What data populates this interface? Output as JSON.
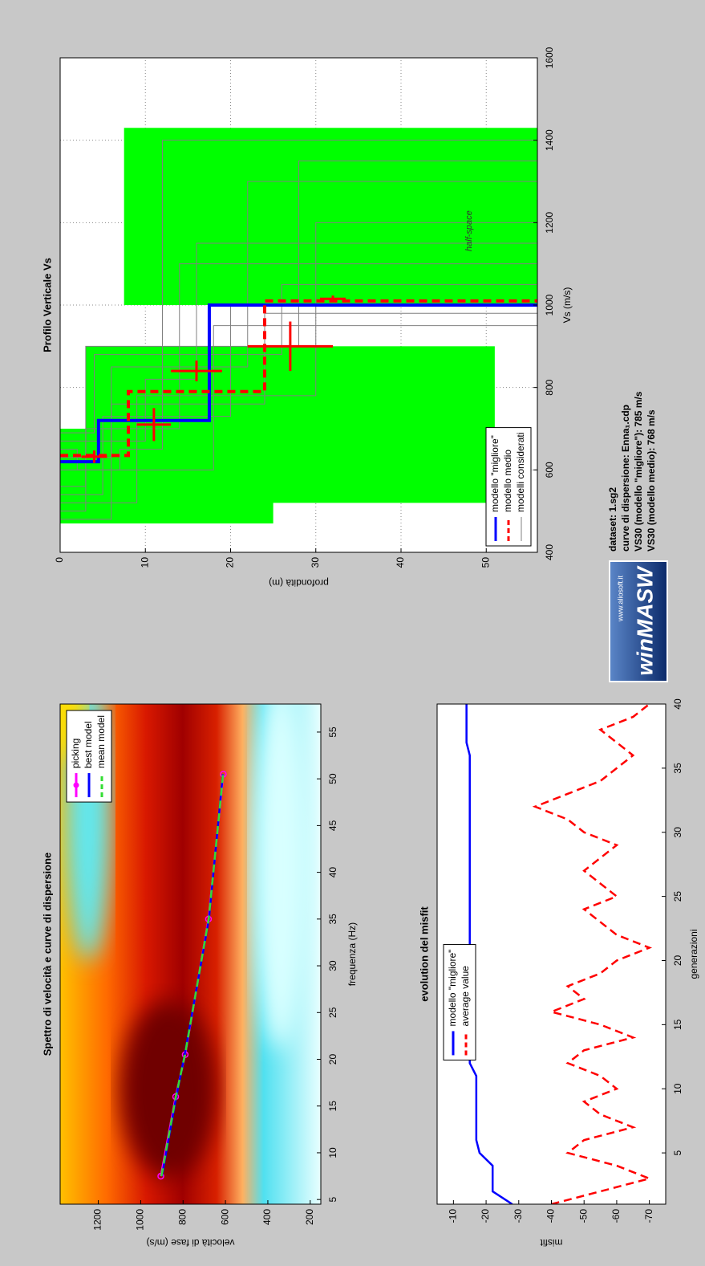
{
  "chart_data": [
    {
      "type": "line",
      "title": "Spettro di velocità e curve di dispersione",
      "xlabel": "frequenza (Hz)",
      "ylabel": "velocità di fase (m/s)",
      "xlim": [
        4.5,
        58
      ],
      "xticks": [
        5,
        10,
        15,
        20,
        25,
        30,
        35,
        40,
        45,
        50,
        55
      ],
      "ylim": [
        150,
        1380
      ],
      "yticks": [
        200,
        400,
        600,
        800,
        1000,
        1200
      ],
      "grid": false,
      "legend": "upper right",
      "series": [
        {
          "name": "picking",
          "color": "#ff00ff",
          "marker": "o",
          "x": [
            7.5,
            16,
            20.5,
            35,
            50.5
          ],
          "values": [
            905,
            835,
            790,
            680,
            610
          ]
        },
        {
          "name": "best model",
          "color": "#0000ff",
          "x": [
            7.5,
            16,
            20.5,
            35,
            50.5
          ],
          "values": [
            900,
            832,
            792,
            678,
            612
          ]
        },
        {
          "name": "mean model",
          "color": "#33dd33",
          "dash": true,
          "x": [
            7.5,
            16,
            20.5,
            35,
            50.5
          ],
          "values": [
            902,
            834,
            791,
            679,
            611
          ]
        }
      ]
    },
    {
      "type": "line",
      "title": "evolution del misfit",
      "xlabel": "generazioni",
      "ylabel": "misfit",
      "xlim": [
        1,
        40
      ],
      "xticks": [
        5,
        10,
        15,
        20,
        25,
        30,
        35,
        40
      ],
      "ylim": [
        -75,
        -5
      ],
      "yticks": [
        -70,
        -60,
        -50,
        -40,
        -30,
        -20,
        -10
      ],
      "grid": false,
      "legend": "upper center",
      "x": [
        1,
        2,
        3,
        4,
        5,
        6,
        7,
        8,
        9,
        10,
        11,
        12,
        13,
        14,
        15,
        16,
        17,
        18,
        19,
        20,
        21,
        22,
        23,
        24,
        25,
        26,
        27,
        28,
        29,
        30,
        31,
        32,
        33,
        34,
        35,
        36,
        37,
        38,
        39,
        40
      ],
      "series": [
        {
          "name": "modello \"migliore\"",
          "color": "#0000ff",
          "values": [
            -28,
            -22,
            -22,
            -22,
            -18,
            -17,
            -17,
            -17,
            -17,
            -17,
            -17,
            -15,
            -15,
            -15,
            -15,
            -15,
            -15,
            -15,
            -15,
            -15,
            -15,
            -15,
            -15,
            -15,
            -15,
            -15,
            -15,
            -15,
            -15,
            -15,
            -15,
            -15,
            -15,
            -15,
            -15,
            -15,
            -14,
            -14,
            -14,
            -14
          ]
        },
        {
          "name": "average value",
          "color": "#ff0000",
          "dash": true,
          "values": [
            -40,
            -55,
            -70,
            -60,
            -45,
            -50,
            -65,
            -55,
            -50,
            -60,
            -55,
            -45,
            -50,
            -65,
            -55,
            -40,
            -50,
            -45,
            -55,
            -60,
            -70,
            -60,
            -55,
            -50,
            -60,
            -55,
            -50,
            -55,
            -60,
            -50,
            -45,
            -35,
            -45,
            -55,
            -60,
            -65,
            -60,
            -55,
            -65,
            -70
          ]
        }
      ]
    },
    {
      "type": "profile",
      "title": "Profilo Verticale Vs",
      "xlabel": "Vs (m/s)",
      "ylabel": "profondità (m)",
      "xlim": [
        400,
        1600
      ],
      "xticks": [
        400,
        600,
        800,
        1000,
        1200,
        1400,
        1600
      ],
      "ylim": [
        0,
        56
      ],
      "yticks": [
        0,
        10,
        20,
        30,
        40,
        50
      ],
      "grid": true,
      "legend": "lower left",
      "search_space": {
        "color": "#00ff00",
        "blocks": [
          {
            "x": [
              470,
              700
            ],
            "values": [
              0,
              25
            ]
          },
          {
            "x": [
              520,
              900
            ],
            "values": [
              3,
              51
            ]
          },
          {
            "x": [
              1000,
              1430
            ],
            "values": [
              7.5,
              56
            ]
          }
        ]
      },
      "annotation": {
        "text": "half-space",
        "x": 1180,
        "y": 48
      },
      "series": [
        {
          "name": "modello \"migliore\"",
          "color": "#0000ff",
          "x": [
            620,
            620,
            720,
            720,
            1000,
            1000
          ],
          "values": [
            0,
            4.5,
            4.5,
            17.5,
            17.5,
            56
          ]
        },
        {
          "name": "modello medio",
          "color": "#ff0000",
          "dash": true,
          "x": [
            635,
            635,
            790,
            790,
            1010,
            1010
          ],
          "values": [
            0,
            8,
            8,
            24,
            24,
            56
          ]
        },
        {
          "name": "modelli considerati",
          "color": "#808080",
          "models": [
            {
              "x": [
                560,
                560,
                700,
                700,
                1100,
                1100
              ],
              "values": [
                0,
                3,
                3,
                14,
                14,
                56
              ]
            },
            {
              "x": [
                480,
                480,
                850,
                850,
                1300,
                1300
              ],
              "values": [
                0,
                6,
                6,
                22,
                22,
                56
              ]
            },
            {
              "x": [
                650,
                650,
                600,
                600,
                950,
                950
              ],
              "values": [
                0,
                2,
                2,
                18,
                18,
                56
              ]
            },
            {
              "x": [
                520,
                520,
                780,
                780,
                1200,
                1200
              ],
              "values": [
                0,
                9,
                9,
                30,
                30,
                56
              ]
            },
            {
              "x": [
                690,
                690,
                880,
                880,
                1050,
                1050
              ],
              "values": [
                0,
                4,
                4,
                26,
                26,
                56
              ]
            },
            {
              "x": [
                600,
                600,
                650,
                650,
                1400,
                1400
              ],
              "values": [
                0,
                7,
                7,
                12,
                12,
                56
              ]
            },
            {
              "x": [
                540,
                540,
                730,
                730,
                1000,
                1000
              ],
              "values": [
                0,
                5,
                5,
                20,
                20,
                56
              ]
            },
            {
              "x": [
                670,
                670,
                820,
                820,
                1150,
                1150
              ],
              "values": [
                0,
                10,
                10,
                16,
                16,
                56
              ]
            },
            {
              "x": [
                500,
                500,
                900,
                900,
                1350,
                1350
              ],
              "values": [
                0,
                3,
                3,
                28,
                28,
                56
              ]
            },
            {
              "x": [
                630,
                630,
                760,
                760,
                980,
                980
              ],
              "values": [
                0,
                6,
                6,
                24,
                24,
                56
              ]
            }
          ]
        }
      ],
      "error_bars": {
        "color": "#ff0000",
        "x": [
          632,
          710,
          840,
          900,
          1015
        ],
        "values": [
          4,
          11,
          16,
          27,
          32
        ],
        "x_err": [
          15,
          40,
          25,
          60,
          8
        ],
        "y_err": [
          1.5,
          2,
          3,
          5,
          1.5
        ]
      }
    }
  ],
  "info": [
    "dataset: 1.sg2",
    "curve di dispersione: Enna₁.cdp",
    "VS30 (modello \"migliore\"): 785 m/s",
    "VS30 (modello medio): 768 m/s"
  ],
  "logo": {
    "url": "www.aliosoft.it",
    "name": "winMASW"
  }
}
